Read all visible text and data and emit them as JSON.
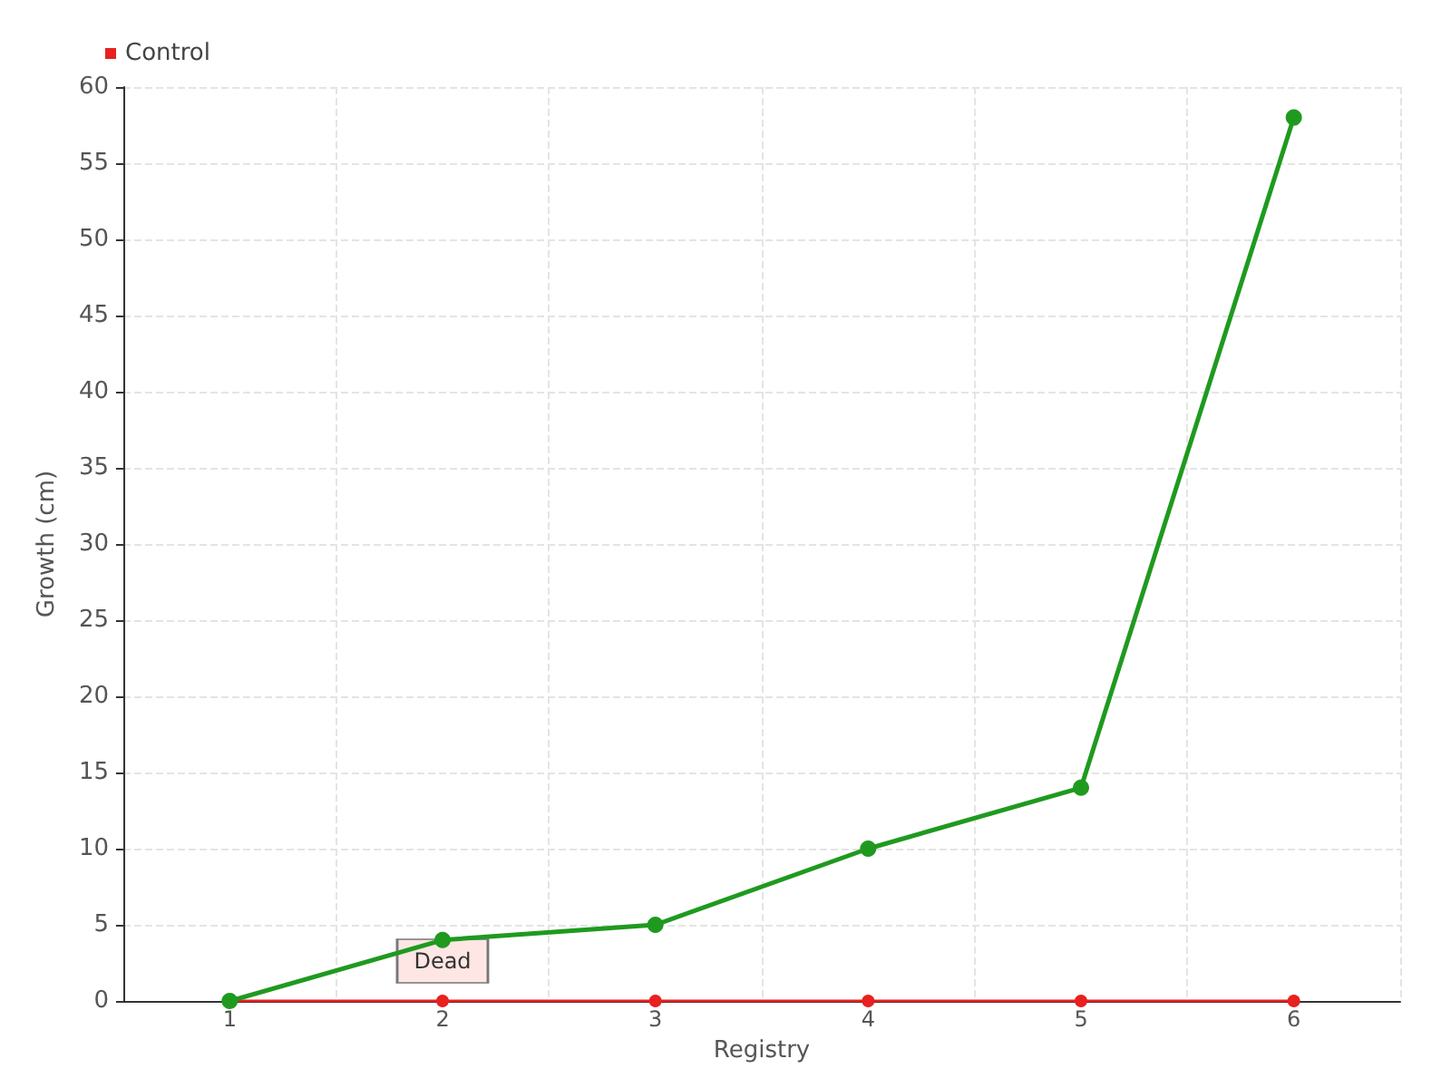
{
  "chart_data": {
    "type": "line",
    "xlabel": "Registry",
    "ylabel": "Growth (cm)",
    "categories": [
      "1",
      "2",
      "3",
      "4",
      "5",
      "6"
    ],
    "series": [
      {
        "color": "#1f9a1f",
        "values": [
          0,
          4,
          5,
          10,
          14,
          58
        ]
      },
      {
        "name": "Control",
        "color": "#e82020",
        "values": [
          0,
          0,
          0,
          0,
          0,
          0
        ]
      }
    ],
    "ylim": [
      0,
      60
    ],
    "yticks": [
      0,
      5,
      10,
      15,
      20,
      25,
      30,
      35,
      40,
      45,
      50,
      55,
      60
    ],
    "grid": true,
    "legend": "top left",
    "marker": "circle",
    "line_style": "solid",
    "annotations": [
      {
        "text": "Dead",
        "x": "2",
        "y": 0
      }
    ]
  }
}
